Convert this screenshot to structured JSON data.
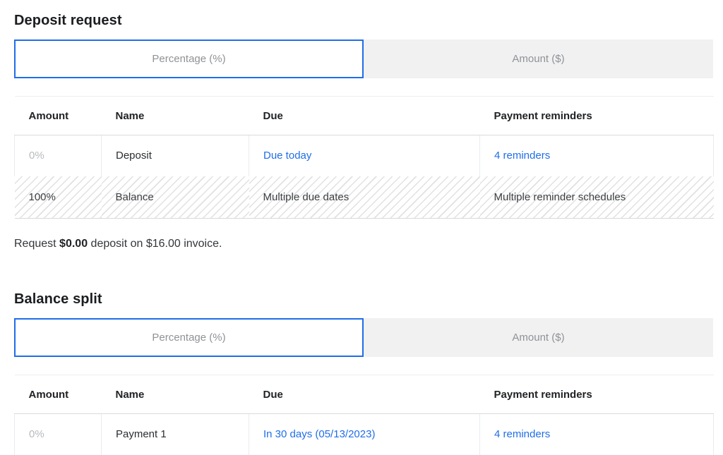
{
  "colors": {
    "accent_blue": "#1f6ee8",
    "link_blue": "#1f6ee8",
    "tab_inactive_bg": "#f1f1f2",
    "tab_label_gray": "#8f9296",
    "placeholder_gray": "#b7babd",
    "text_dark": "#202326",
    "hatch_line": "#e1e1e2",
    "border_gray": "#d9dadc"
  },
  "deposit_request": {
    "title": "Deposit request",
    "tabs": {
      "percentage": "Percentage (%)",
      "amount": "Amount ($)",
      "selected": "Percentage (%)"
    },
    "table": {
      "headers": {
        "amount": "Amount",
        "name": "Name",
        "due": "Due",
        "reminders": "Payment reminders"
      },
      "rows": [
        {
          "amount": "0%",
          "name": "Deposit",
          "due": "Due today",
          "reminders": "4 reminders"
        },
        {
          "amount": "100%",
          "name": "Balance",
          "due": "Multiple due dates",
          "reminders": "Multiple reminder schedules"
        }
      ]
    },
    "summary": {
      "prefix": "Request ",
      "amount": "$0.00",
      "suffix": " deposit on $16.00 invoice."
    }
  },
  "balance_split": {
    "title": "Balance split",
    "tabs": {
      "percentage": "Percentage (%)",
      "amount": "Amount ($)",
      "selected": "Percentage (%)"
    },
    "table": {
      "headers": {
        "amount": "Amount",
        "name": "Name",
        "due": "Due",
        "reminders": "Payment reminders"
      },
      "rows": [
        {
          "amount": "0%",
          "name": "Payment 1",
          "due": "In 30 days (05/13/2023)",
          "reminders": "4 reminders"
        }
      ]
    }
  }
}
